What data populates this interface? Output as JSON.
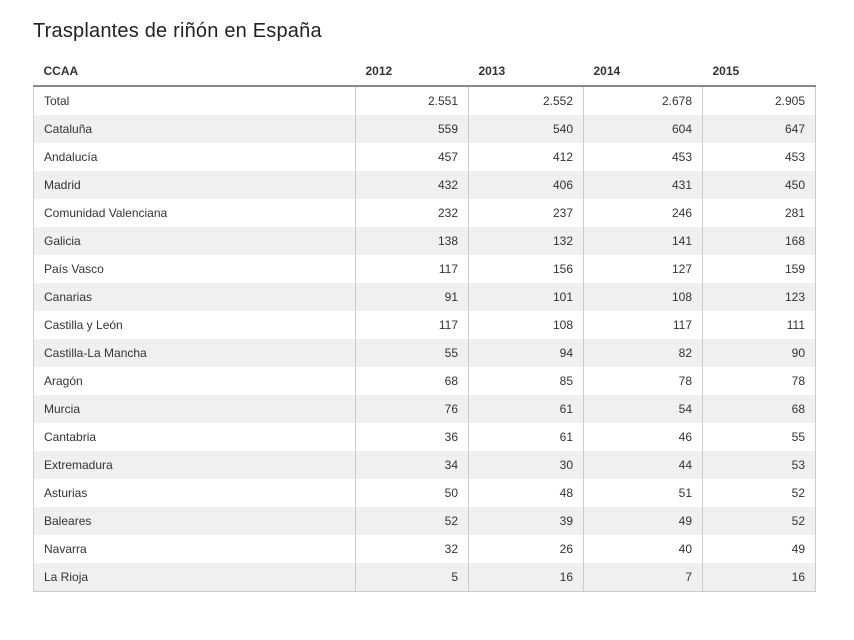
{
  "page": {
    "title": "Trasplantes de riñón en España"
  },
  "table": {
    "columns": [
      "CCAA",
      "2012",
      "2013",
      "2014",
      "2015"
    ],
    "rows": [
      {
        "label": "Total",
        "values": [
          "2.551",
          "2.552",
          "2.678",
          "2.905"
        ]
      },
      {
        "label": "Cataluña",
        "values": [
          "559",
          "540",
          "604",
          "647"
        ]
      },
      {
        "label": "Andalucía",
        "values": [
          "457",
          "412",
          "453",
          "453"
        ]
      },
      {
        "label": "Madrid",
        "values": [
          "432",
          "406",
          "431",
          "450"
        ]
      },
      {
        "label": "Comunidad Valenciana",
        "values": [
          "232",
          "237",
          "246",
          "281"
        ]
      },
      {
        "label": "Galicia",
        "values": [
          "138",
          "132",
          "141",
          "168"
        ]
      },
      {
        "label": "País Vasco",
        "values": [
          "117",
          "156",
          "127",
          "159"
        ]
      },
      {
        "label": "Canarias",
        "values": [
          "91",
          "101",
          "108",
          "123"
        ]
      },
      {
        "label": "Castilla y León",
        "values": [
          "117",
          "108",
          "117",
          "111"
        ]
      },
      {
        "label": "Castilla-La Mancha",
        "values": [
          "55",
          "94",
          "82",
          "90"
        ]
      },
      {
        "label": "Aragón",
        "values": [
          "68",
          "85",
          "78",
          "78"
        ]
      },
      {
        "label": "Murcia",
        "values": [
          "76",
          "61",
          "54",
          "68"
        ]
      },
      {
        "label": "Cantabria",
        "values": [
          "36",
          "61",
          "46",
          "55"
        ]
      },
      {
        "label": "Extremadura",
        "values": [
          "34",
          "30",
          "44",
          "53"
        ]
      },
      {
        "label": "Asturias",
        "values": [
          "50",
          "48",
          "51",
          "52"
        ]
      },
      {
        "label": "Baleares",
        "values": [
          "52",
          "39",
          "49",
          "52"
        ]
      },
      {
        "label": "Navarra",
        "values": [
          "32",
          "26",
          "40",
          "49"
        ]
      },
      {
        "label": "La Rioja",
        "values": [
          "5",
          "16",
          "7",
          "16"
        ]
      }
    ]
  },
  "chart_data": {
    "type": "table",
    "title": "Trasplantes de riñón en España",
    "columns": [
      "CCAA",
      "2012",
      "2013",
      "2014",
      "2015"
    ],
    "rows": [
      [
        "Total",
        2551,
        2552,
        2678,
        2905
      ],
      [
        "Cataluña",
        559,
        540,
        604,
        647
      ],
      [
        "Andalucía",
        457,
        412,
        453,
        453
      ],
      [
        "Madrid",
        432,
        406,
        431,
        450
      ],
      [
        "Comunidad Valenciana",
        232,
        237,
        246,
        281
      ],
      [
        "Galicia",
        138,
        132,
        141,
        168
      ],
      [
        "País Vasco",
        117,
        156,
        127,
        159
      ],
      [
        "Canarias",
        91,
        101,
        108,
        123
      ],
      [
        "Castilla y León",
        117,
        108,
        117,
        111
      ],
      [
        "Castilla-La Mancha",
        55,
        94,
        82,
        90
      ],
      [
        "Aragón",
        68,
        85,
        78,
        78
      ],
      [
        "Murcia",
        76,
        61,
        54,
        68
      ],
      [
        "Cantabria",
        36,
        61,
        46,
        55
      ],
      [
        "Extremadura",
        34,
        30,
        44,
        53
      ],
      [
        "Asturias",
        50,
        48,
        51,
        52
      ],
      [
        "Baleares",
        52,
        39,
        49,
        52
      ],
      [
        "Navarra",
        32,
        26,
        40,
        49
      ],
      [
        "La Rioja",
        5,
        16,
        7,
        16
      ]
    ],
    "number_format": "thousands separated by dot",
    "notes": "Striped table, alternating white / light-gray rows; numeric columns right-aligned"
  },
  "colors": {
    "stripe": "#f0f0f0",
    "cell_border": "#cccccc",
    "header_underline": "#8a8a8a",
    "text": "#333333",
    "title_text": "#222222",
    "background": "#ffffff"
  }
}
